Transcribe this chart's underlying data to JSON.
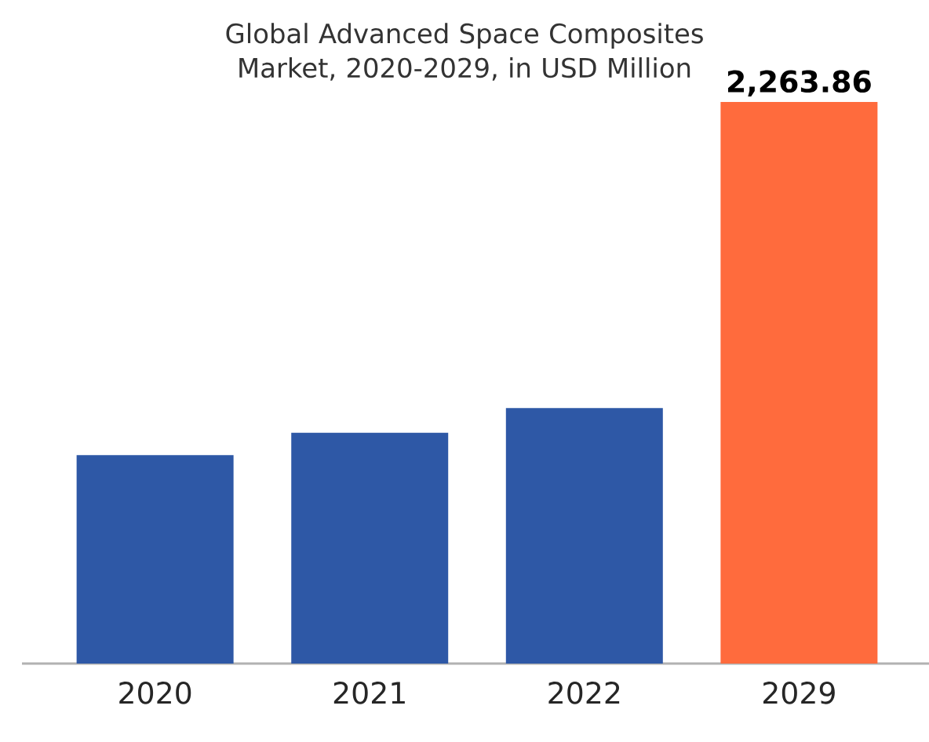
{
  "chart_data": {
    "type": "bar",
    "title": "Global Advanced Space Composites Market, 2020-2029, in USD Million",
    "categories": [
      "2020",
      "2021",
      "2022",
      "2029"
    ],
    "values": [
      840,
      930,
      1030,
      2263.86
    ],
    "colors": [
      "#2e58a6",
      "#2e58a6",
      "#2e58a6",
      "#ff6b3d"
    ],
    "value_labels": [
      null,
      null,
      null,
      "2,263.86"
    ]
  }
}
